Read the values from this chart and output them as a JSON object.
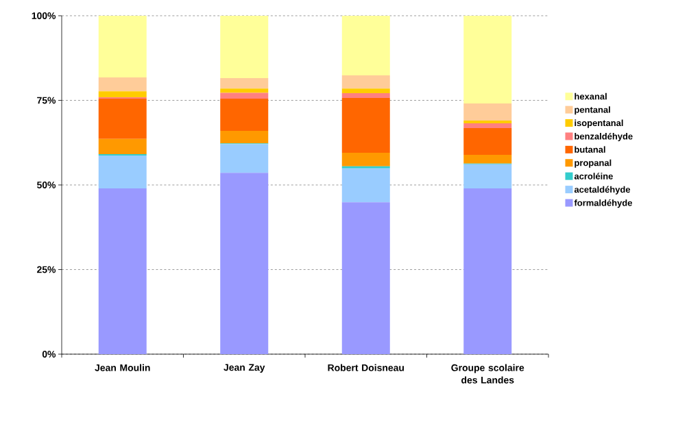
{
  "chart_data": {
    "type": "bar",
    "stacked": true,
    "categories": [
      "Jean Moulin",
      "Jean Zay",
      "Robert Doisneau",
      "Groupe scolaire des Landes"
    ],
    "series": [
      {
        "name": "formaldéhyde",
        "color": "#9999ff",
        "values": [
          49.0,
          53.6,
          44.9,
          49.0
        ]
      },
      {
        "name": "acetaldéhyde",
        "color": "#99ccff",
        "values": [
          9.7,
          8.5,
          10.0,
          7.1
        ]
      },
      {
        "name": "acroléine",
        "color": "#33cccc",
        "values": [
          0.4,
          0.2,
          0.6,
          0.2
        ]
      },
      {
        "name": "propanal",
        "color": "#ff9900",
        "values": [
          4.5,
          3.7,
          4.0,
          2.6
        ]
      },
      {
        "name": "butanal",
        "color": "#ff6600",
        "values": [
          11.9,
          9.5,
          16.2,
          7.9
        ]
      },
      {
        "name": "benzaldéhyde",
        "color": "#ff8080",
        "values": [
          0.4,
          1.7,
          1.4,
          1.4
        ]
      },
      {
        "name": "isopentanal",
        "color": "#ffcc00",
        "values": [
          1.8,
          1.3,
          1.4,
          0.8
        ]
      },
      {
        "name": "pentanal",
        "color": "#ffcc99",
        "values": [
          4.1,
          3.1,
          3.9,
          5.1
        ]
      },
      {
        "name": "hexanal",
        "color": "#ffff99",
        "values": [
          18.2,
          18.4,
          17.6,
          25.9
        ]
      }
    ],
    "ylim": [
      0,
      100
    ],
    "yticks": [
      {
        "value": 0,
        "label": "0%"
      },
      {
        "value": 25,
        "label": "25%"
      },
      {
        "value": 50,
        "label": "50%"
      },
      {
        "value": 75,
        "label": "75%"
      },
      {
        "value": 100,
        "label": "100%"
      }
    ],
    "grid": "y",
    "legend": "right"
  }
}
